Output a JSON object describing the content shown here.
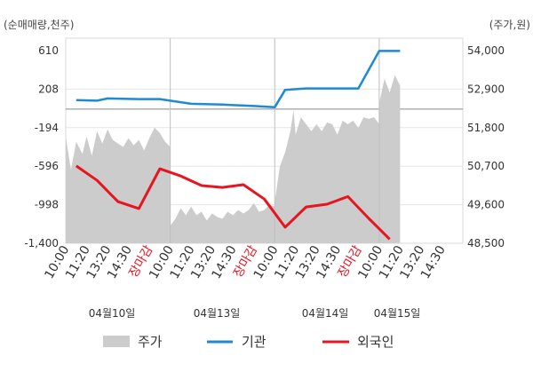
{
  "chart_data": {
    "type": "line",
    "left_axis": {
      "unit": "(순매매량,천주)",
      "ticks": [
        610,
        208,
        -194,
        -596,
        -998,
        -1400
      ],
      "tick_labels": [
        "610",
        "208",
        "-194",
        "-596",
        "-998",
        "-1,400"
      ],
      "range": [
        -1400,
        610
      ]
    },
    "right_axis": {
      "unit": "(주가,원)",
      "ticks": [
        54000,
        52900,
        51800,
        50700,
        49600,
        48500
      ],
      "tick_labels": [
        "54,000",
        "52,900",
        "51,800",
        "50,700",
        "49,600",
        "48,500"
      ],
      "range": [
        48500,
        54000
      ]
    },
    "x_labels": [
      "10:00",
      "11:20",
      "13:20",
      "14:30",
      "장마감",
      "10:00",
      "11:20",
      "13:20",
      "14:30",
      "장마감",
      "10:00",
      "11:20",
      "13:20",
      "14:30",
      "장마감",
      "10:00",
      "11:20",
      "13:20",
      "14:30"
    ],
    "x_label_colors": {
      "장마감": "#e8141f"
    },
    "dates": [
      "04월10일",
      "04월13일",
      "04월14일",
      "04월15일"
    ],
    "zero_line": 0,
    "series": [
      {
        "name": "주가",
        "kind": "area",
        "color": "#cccccc",
        "axis": "right",
        "points": [
          [
            0,
            51550
          ],
          [
            0.5,
            50600
          ],
          [
            1,
            51400
          ],
          [
            1.6,
            51050
          ],
          [
            2,
            51550
          ],
          [
            2.5,
            51000
          ],
          [
            3,
            51700
          ],
          [
            3.5,
            51350
          ],
          [
            4,
            51750
          ],
          [
            4.5,
            51450
          ],
          [
            5,
            51350
          ],
          [
            5.5,
            51250
          ],
          [
            6,
            51500
          ],
          [
            6.5,
            51300
          ],
          [
            7,
            51450
          ],
          [
            7.5,
            51150
          ],
          [
            8,
            51500
          ],
          [
            8.5,
            51800
          ],
          [
            9,
            51650
          ],
          [
            9.5,
            51400
          ],
          [
            10,
            51250
          ],
          [
            10,
            49000
          ],
          [
            10.5,
            49200
          ],
          [
            11,
            49500
          ],
          [
            11.5,
            49300
          ],
          [
            12,
            49550
          ],
          [
            12.5,
            49300
          ],
          [
            13,
            49400
          ],
          [
            13.5,
            49150
          ],
          [
            14,
            49350
          ],
          [
            14.5,
            49250
          ],
          [
            15,
            49200
          ],
          [
            15.5,
            49400
          ],
          [
            16,
            49300
          ],
          [
            16.5,
            49450
          ],
          [
            17,
            49350
          ],
          [
            17.5,
            49450
          ],
          [
            18,
            49650
          ],
          [
            18.5,
            49400
          ],
          [
            19,
            49450
          ],
          [
            19.5,
            49600
          ],
          [
            20,
            49550
          ],
          [
            20,
            49700
          ],
          [
            20.5,
            50700
          ],
          [
            21,
            51100
          ],
          [
            21.5,
            51700
          ],
          [
            21.8,
            52300
          ],
          [
            22,
            51600
          ],
          [
            22.5,
            52100
          ],
          [
            23,
            51900
          ],
          [
            23.5,
            51700
          ],
          [
            24,
            51900
          ],
          [
            24.5,
            51700
          ],
          [
            25,
            51950
          ],
          [
            25.5,
            51900
          ],
          [
            26,
            51600
          ],
          [
            26.5,
            52000
          ],
          [
            27,
            51900
          ],
          [
            27.5,
            52000
          ],
          [
            28,
            51800
          ],
          [
            28.5,
            52100
          ],
          [
            29,
            52050
          ],
          [
            29.5,
            52100
          ],
          [
            30,
            51900
          ],
          [
            30,
            52500
          ],
          [
            30.5,
            53200
          ],
          [
            31,
            52800
          ],
          [
            31.5,
            53300
          ],
          [
            32,
            53000
          ]
        ]
      },
      {
        "name": "기관",
        "kind": "line",
        "color": "#1f8ad1",
        "axis": "left",
        "points": [
          [
            1,
            93
          ],
          [
            3,
            88
          ],
          [
            4,
            111
          ],
          [
            7,
            104
          ],
          [
            8,
            104
          ],
          [
            9,
            104
          ],
          [
            12,
            55
          ],
          [
            15,
            47
          ],
          [
            18,
            32
          ],
          [
            20,
            19
          ],
          [
            21,
            201
          ],
          [
            23,
            215
          ],
          [
            27,
            215
          ],
          [
            28,
            215
          ],
          [
            30,
            606
          ],
          [
            32,
            606
          ]
        ]
      },
      {
        "name": "외국인",
        "kind": "line",
        "color": "#e8141f",
        "axis": "left",
        "points": [
          [
            1,
            -593
          ],
          [
            3,
            -744
          ],
          [
            5,
            -966
          ],
          [
            7,
            -1038
          ],
          [
            9,
            -623
          ],
          [
            11,
            -698
          ],
          [
            13,
            -798
          ],
          [
            15,
            -817
          ],
          [
            17,
            -789
          ],
          [
            19,
            -939
          ],
          [
            21,
            -1232
          ],
          [
            23,
            -1021
          ],
          [
            25,
            -992
          ],
          [
            27,
            -913
          ],
          [
            29,
            -1141
          ],
          [
            31,
            -1357
          ]
        ]
      }
    ],
    "legend": {
      "placement": "bottom",
      "entries": [
        "주가",
        "기관",
        "외국인"
      ]
    },
    "grid": true
  }
}
